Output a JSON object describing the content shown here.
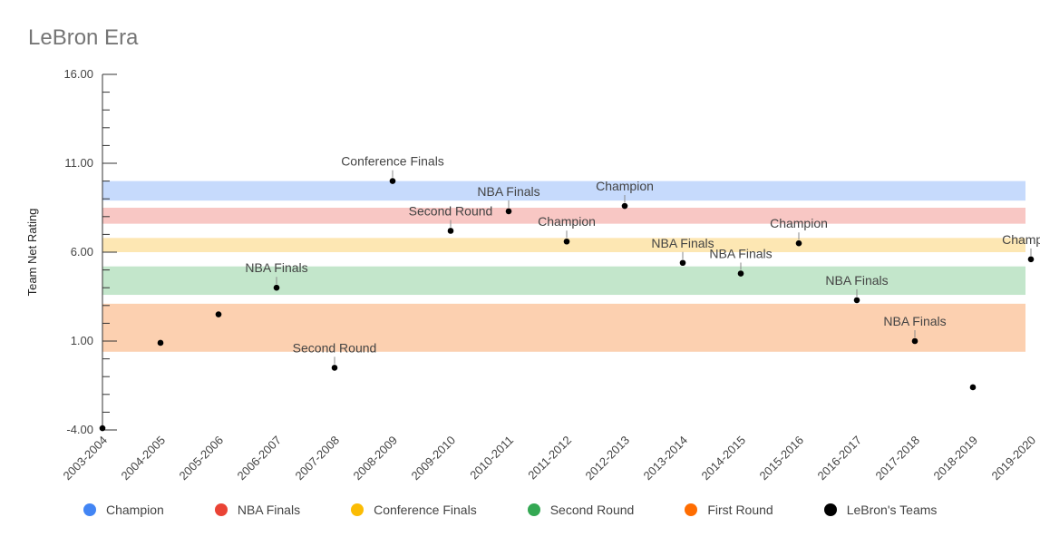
{
  "chart_data": {
    "type": "scatter",
    "title": "LeBron Era",
    "ylabel": "Team Net Rating",
    "xlabel": "",
    "ylim": [
      -4,
      16
    ],
    "y_ticks": [
      "16.00",
      "11.00",
      "6.00",
      "1.00",
      "-4.00"
    ],
    "categories": [
      "2003-2004",
      "2004-2005",
      "2005-2006",
      "2006-2007",
      "2007-2008",
      "2008-2009",
      "2009-2010",
      "2010-2011",
      "2011-2012",
      "2012-2013",
      "2013-2014",
      "2014-2015",
      "2015-2016",
      "2016-2017",
      "2017-2018",
      "2018-2019",
      "2019-2020"
    ],
    "series": [
      {
        "name": "LeBron's Teams",
        "color": "#000000",
        "values": [
          -3.9,
          0.9,
          2.5,
          4.0,
          -0.5,
          10.0,
          7.2,
          8.3,
          6.6,
          8.6,
          5.4,
          4.8,
          6.5,
          3.3,
          1.0,
          -1.6,
          5.6
        ],
        "labels": [
          "",
          "",
          "",
          "NBA Finals",
          "Second Round",
          "Conference Finals",
          "Second Round",
          "NBA Finals",
          "Champion",
          "Champion",
          "NBA Finals",
          "NBA Finals",
          "Champion",
          "NBA Finals",
          "NBA Finals",
          "",
          "Champion"
        ]
      }
    ],
    "bands": [
      {
        "name": "Champion",
        "color": "#c6dafc",
        "from": 8.9,
        "to": 10.0
      },
      {
        "name": "NBA Finals",
        "color": "#f8c7c4",
        "from": 7.6,
        "to": 8.5
      },
      {
        "name": "Conference Finals",
        "color": "#fde7b3",
        "from": 6.0,
        "to": 6.8
      },
      {
        "name": "Second Round",
        "color": "#c3e6cb",
        "from": 3.6,
        "to": 5.2
      },
      {
        "name": "First Round",
        "color": "#fcd0b0",
        "from": 0.4,
        "to": 3.1
      }
    ],
    "legend": [
      {
        "label": "Champion",
        "color": "#4285f4"
      },
      {
        "label": "NBA Finals",
        "color": "#ea4335"
      },
      {
        "label": "Conference Finals",
        "color": "#fbbc04"
      },
      {
        "label": "Second Round",
        "color": "#34a853"
      },
      {
        "label": "First Round",
        "color": "#ff6d01"
      },
      {
        "label": "LeBron's Teams",
        "color": "#000000"
      }
    ],
    "legend_position": "bottom",
    "grid": false
  }
}
